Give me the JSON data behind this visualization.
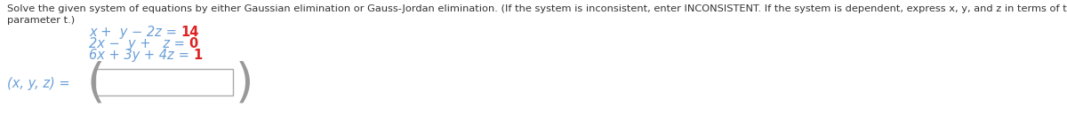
{
  "bg_color": "#ffffff",
  "text_color": "#6a9fd8",
  "red_color": "#dd2222",
  "dark_color": "#333333",
  "header_line1": "Solve the given system of equations by either Gaussian elimination or Gauss-Jordan elimination. (If the system is inconsistent, enter INCONSISTENT. If the system is dependent, express x, y, and z in terms of the",
  "header_line2": "parameter t.)",
  "header_fontsize": 8.2,
  "eq_fontsize": 10.5,
  "answer_label": "(x, y, z) =",
  "eq1_blue": "x +  y − 2z",
  "eq1_eq": " = ",
  "eq1_red": "14",
  "eq2_blue": "2x −  y +   z",
  "eq2_eq": " = ",
  "eq2_red": "0",
  "eq3_blue": "6x + 3y + 4z",
  "eq3_eq": " = ",
  "eq3_red": "1",
  "figsize": [
    12.0,
    1.38
  ],
  "dpi": 100
}
